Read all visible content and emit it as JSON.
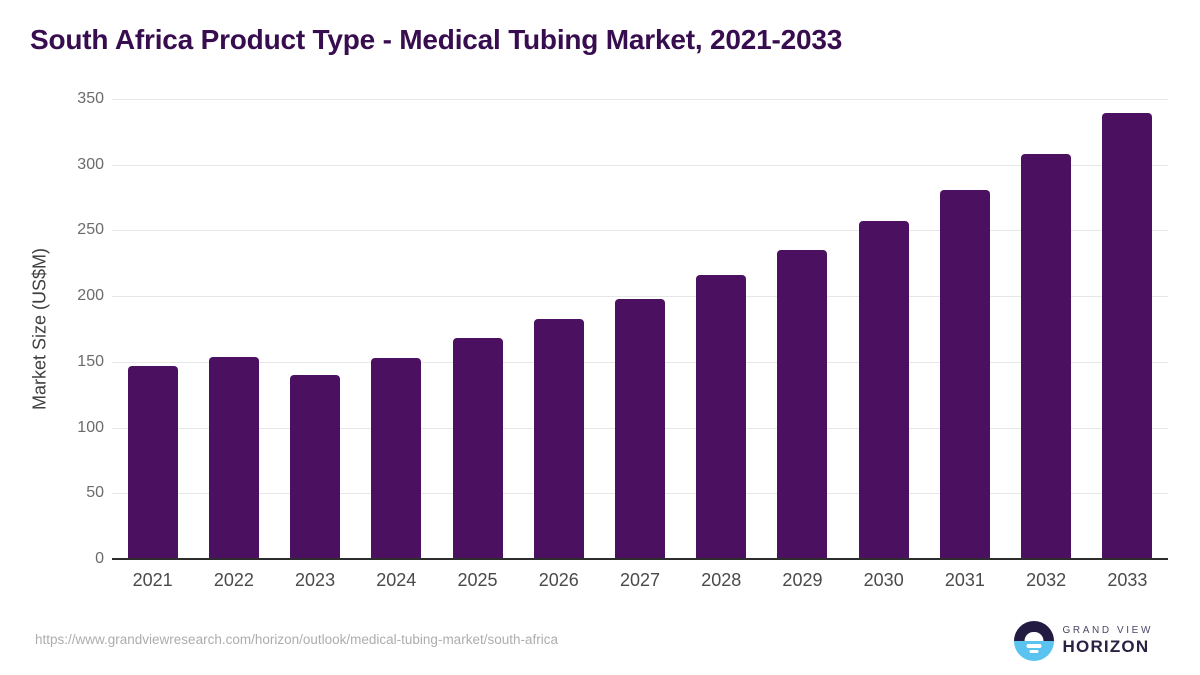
{
  "title": "South Africa Product Type - Medical Tubing Market, 2021-2033",
  "chart_data": {
    "type": "bar",
    "categories": [
      "2021",
      "2022",
      "2023",
      "2024",
      "2025",
      "2026",
      "2027",
      "2028",
      "2029",
      "2030",
      "2031",
      "2032",
      "2033"
    ],
    "values": [
      147,
      154,
      140,
      153,
      168,
      183,
      198,
      216,
      235,
      257,
      281,
      308,
      339
    ],
    "title": "South Africa Product Type - Medical Tubing Market, 2021-2033",
    "xlabel": "",
    "ylabel": "Market Size (US$M)",
    "ylim": [
      0,
      350
    ],
    "yticks": [
      0,
      50,
      100,
      150,
      200,
      250,
      300,
      350
    ],
    "grid": true,
    "legend": "none",
    "bar_color": "#4B1160"
  },
  "footer": {
    "source_url": "https://www.grandviewresearch.com/horizon/outlook/medical-tubing-market/south-africa",
    "logo_line1": "GRAND VIEW",
    "logo_line2": "HORIZON"
  },
  "colors": {
    "title": "#380D4F",
    "bar": "#4B1160",
    "gridline": "#E7E7E7",
    "axis_line": "#2D2D2D",
    "y_tick_label": "#6B6B6B",
    "x_tick_label": "#4A4A4A",
    "source_url": "#ADADAD",
    "logo_navy": "#241B43",
    "logo_blue": "#5BC3F0",
    "logo_text_top": "#4B4765",
    "logo_text_bottom": "#2B2144"
  }
}
